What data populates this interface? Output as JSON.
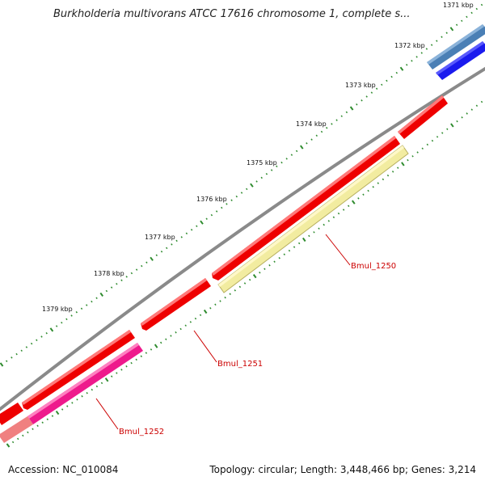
{
  "header": {
    "title": "Burkholderia multivorans ATCC 17616 chromosome 1, complete s..."
  },
  "footer": {
    "accession": "Accession: NC_010084",
    "summary": "Topology: circular; Length: 3,448,466 bp; Genes: 3,214"
  },
  "ruler": {
    "ticks": [
      "1371 kbp",
      "1372 kbp",
      "1373 kbp",
      "1374 kbp",
      "1375 kbp",
      "1376 kbp",
      "1377 kbp",
      "1378 kbp",
      "1379 kbp"
    ]
  },
  "genes": [
    {
      "label": "Bmul_1250"
    },
    {
      "label": "Bmul_1251"
    },
    {
      "label": "Bmul_1252"
    }
  ],
  "colors": {
    "backbone": "#8a8a8a",
    "cds": "#ee0000",
    "blue_feature": "#1a1aee",
    "steelblue_feature": "#4a7fb5",
    "yellow_feature": "#f2eca0",
    "magenta_feature": "#ee1a8c",
    "salmon_feature": "#f08080",
    "tick": "#2e8b2e",
    "label": "#cc0000"
  }
}
